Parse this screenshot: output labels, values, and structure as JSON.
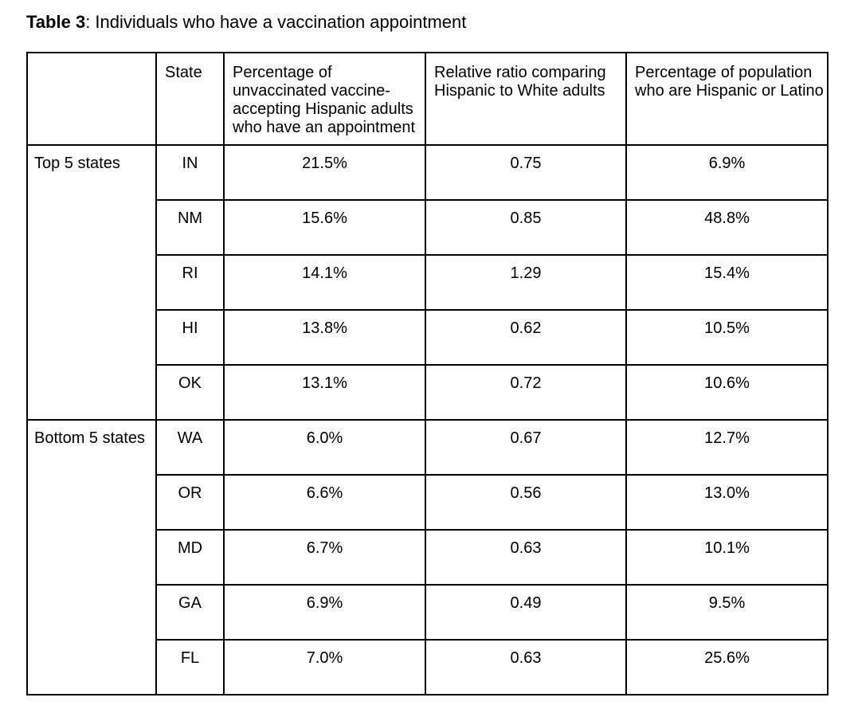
{
  "title": {
    "label": "Table 3",
    "caption": ": Individuals who have a vaccination appointment"
  },
  "colors": {
    "text": "#000000",
    "border": "#000000",
    "background": "#ffffff"
  },
  "table": {
    "columns": {
      "group": "",
      "state": "State",
      "pct_appointment": "Percentage of\nunvaccinated vaccine-\naccepting Hispanic adults\nwho have an appointment",
      "relative_ratio": "Relative ratio comparing\nHispanic to White adults",
      "pct_hispanic": "Percentage of population\nwho are Hispanic or Latino"
    },
    "groups": [
      {
        "label": "Top 5 states",
        "rows": [
          {
            "state": "IN",
            "pct_appointment": "21.5%",
            "relative_ratio": "0.75",
            "pct_hispanic": "6.9%"
          },
          {
            "state": "NM",
            "pct_appointment": "15.6%",
            "relative_ratio": "0.85",
            "pct_hispanic": "48.8%"
          },
          {
            "state": "RI",
            "pct_appointment": "14.1%",
            "relative_ratio": "1.29",
            "pct_hispanic": "15.4%"
          },
          {
            "state": "HI",
            "pct_appointment": "13.8%",
            "relative_ratio": "0.62",
            "pct_hispanic": "10.5%"
          },
          {
            "state": "OK",
            "pct_appointment": "13.1%",
            "relative_ratio": "0.72",
            "pct_hispanic": "10.6%"
          }
        ]
      },
      {
        "label": "Bottom 5 states",
        "rows": [
          {
            "state": "WA",
            "pct_appointment": "6.0%",
            "relative_ratio": "0.67",
            "pct_hispanic": "12.7%"
          },
          {
            "state": "OR",
            "pct_appointment": "6.6%",
            "relative_ratio": "0.56",
            "pct_hispanic": "13.0%"
          },
          {
            "state": "MD",
            "pct_appointment": "6.7%",
            "relative_ratio": "0.63",
            "pct_hispanic": "10.1%"
          },
          {
            "state": "GA",
            "pct_appointment": "6.9%",
            "relative_ratio": "0.49",
            "pct_hispanic": "9.5%"
          },
          {
            "state": "FL",
            "pct_appointment": "7.0%",
            "relative_ratio": "0.63",
            "pct_hispanic": "25.6%"
          }
        ]
      }
    ]
  }
}
